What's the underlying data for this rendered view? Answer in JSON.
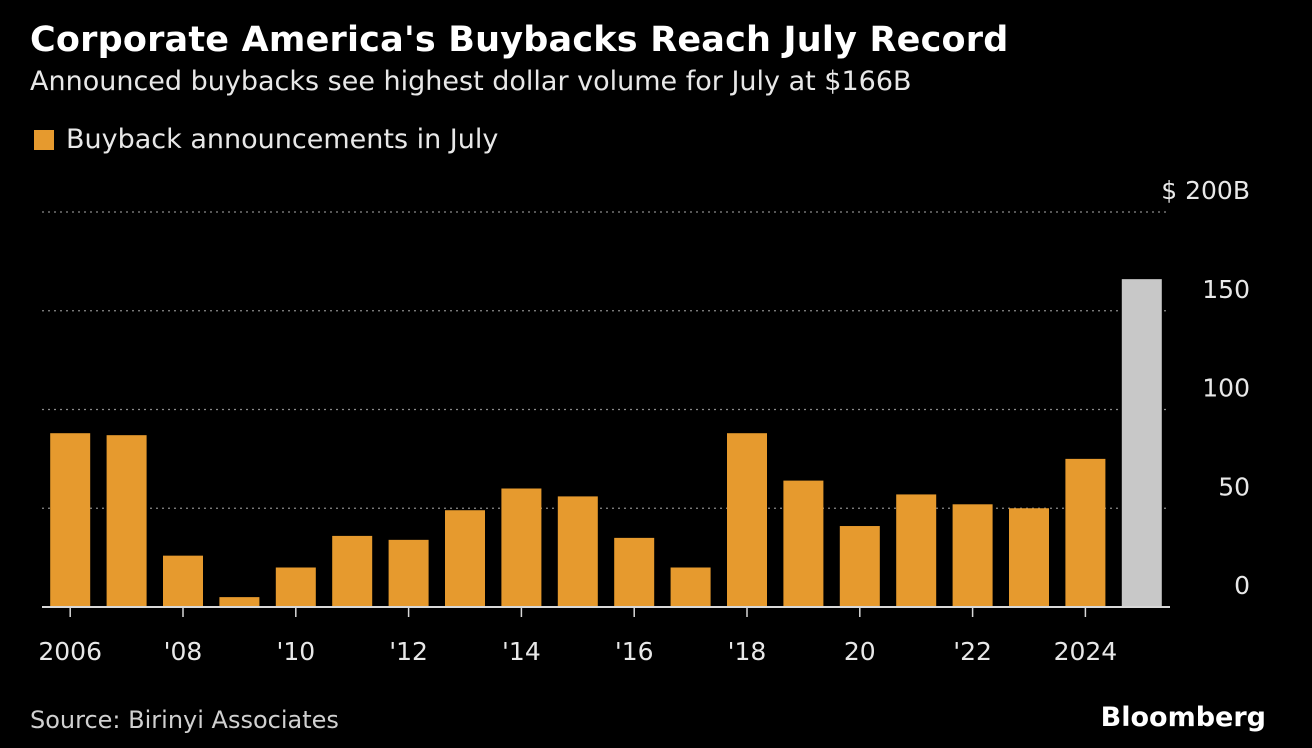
{
  "header": {
    "title": "Corporate America's Buybacks Reach July Record",
    "subtitle": "Announced buybacks see highest dollar volume for July at $166B"
  },
  "colors": {
    "bar": "#e69a2e",
    "highlight": "#c8c8c8",
    "grid": "#8a8a8a",
    "background": "#000000",
    "text": "#ffffff"
  },
  "chart_data": {
    "type": "bar",
    "legend": [
      "Buyback announcements in July"
    ],
    "categories": [
      "2006",
      "2007",
      "2008",
      "2009",
      "2010",
      "2011",
      "2012",
      "2013",
      "2014",
      "2015",
      "2016",
      "2017",
      "2018",
      "2019",
      "2020",
      "2021",
      "2022",
      "2023",
      "2024",
      "2025"
    ],
    "x_tick_labels": [
      "2006",
      "",
      "'08",
      "",
      "'10",
      "",
      "'12",
      "",
      "'14",
      "",
      "'16",
      "",
      "'18",
      "",
      "20",
      "",
      "'22",
      "",
      "2024",
      ""
    ],
    "series": [
      {
        "name": "Buyback announcements in July",
        "values": [
          88,
          87,
          26,
          5,
          20,
          36,
          34,
          49,
          60,
          56,
          35,
          20,
          88,
          64,
          41,
          57,
          52,
          50,
          75,
          166
        ]
      }
    ],
    "highlight_index": 19,
    "ylim": [
      0,
      200
    ],
    "yticks": [
      0,
      50,
      100,
      150,
      200
    ],
    "y_tick_labels": [
      "0",
      "50",
      "100",
      "150",
      "$ 200B"
    ],
    "grid": true,
    "legend_position": "top-left"
  },
  "footer": {
    "source": "Source: Birinyi Associates",
    "brand": "Bloomberg"
  }
}
